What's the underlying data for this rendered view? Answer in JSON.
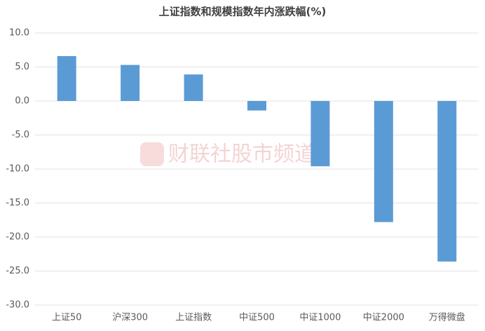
{
  "chart_data": {
    "type": "bar",
    "title": "上证指数和规模指数年内涨跌幅(%)",
    "watermark": "财联社股市频道",
    "categories": [
      "上证50",
      "沪深300",
      "上证指数",
      "中证500",
      "中证1000",
      "中证2000",
      "万得微盘"
    ],
    "values": [
      6.6,
      5.3,
      3.9,
      -1.4,
      -9.6,
      -17.8,
      -23.6
    ],
    "color": "#5b9bd5",
    "ylim": [
      -30,
      10
    ],
    "yticks": [
      {
        "value": -30,
        "label": "-30.0"
      },
      {
        "value": -25,
        "label": "-25.0"
      },
      {
        "value": -20,
        "label": "-20.0"
      },
      {
        "value": -15,
        "label": "-15.0"
      },
      {
        "value": -10,
        "label": "-10.0"
      },
      {
        "value": -5,
        "label": "-5.0"
      },
      {
        "value": 0,
        "label": "0.0"
      },
      {
        "value": 5,
        "label": "5.0"
      },
      {
        "value": 10,
        "label": "10.0"
      }
    ],
    "grid": true
  }
}
